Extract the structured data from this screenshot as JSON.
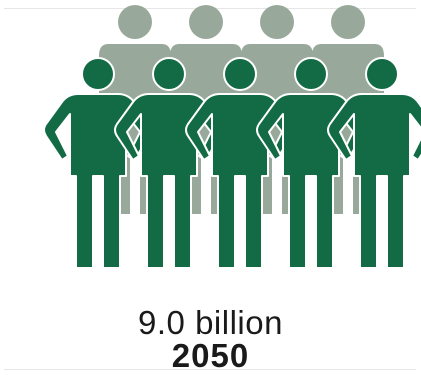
{
  "infographic": {
    "population_value": "9.0 billion",
    "year": "2050",
    "icons": {
      "back_row": "person-icon",
      "front_row": "person-icon"
    },
    "colors": {
      "back_row": "#98a99b",
      "front_row": "#136b45"
    }
  }
}
